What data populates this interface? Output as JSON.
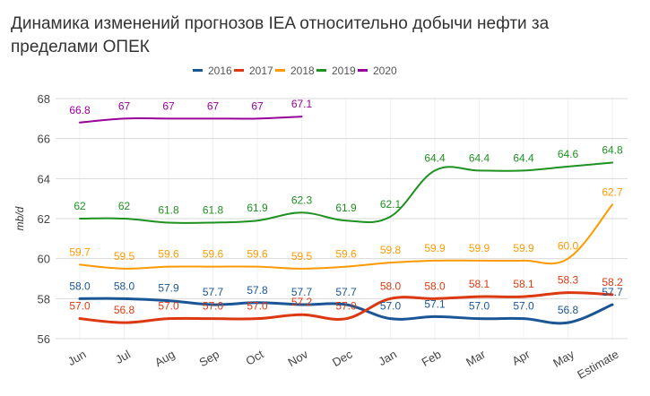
{
  "chart_data": {
    "type": "line",
    "title": "Динамика изменений прогнозов IEA относительно добычи нефти за пределами ОПЕК",
    "xlabel": "",
    "ylabel": "mb/d",
    "ylim": [
      56,
      68
    ],
    "yticks": [
      56,
      58,
      60,
      62,
      64,
      66,
      68
    ],
    "grid": true,
    "legend_position": "top-center",
    "categories": [
      "Jun",
      "Jul",
      "Aug",
      "Sep",
      "Oct",
      "Nov",
      "Dec",
      "Jan",
      "Feb",
      "Mar",
      "Apr",
      "May",
      "Estimate"
    ],
    "series": [
      {
        "name": "2016",
        "color": "#1a5696",
        "values": [
          58.0,
          58.0,
          57.9,
          57.7,
          57.8,
          57.7,
          57.7,
          57.0,
          57.1,
          57.0,
          57.0,
          56.8,
          57.7
        ],
        "labels": [
          "58.0",
          "58.0",
          "57.9",
          "57.7",
          "57.8",
          "57.7",
          "57.7",
          "57.0",
          "57.1",
          "57.0",
          "57.0",
          "56.8",
          "57.7"
        ]
      },
      {
        "name": "2017",
        "color": "#dc3912",
        "values": [
          57.0,
          56.8,
          57.0,
          57.0,
          57.0,
          57.2,
          57.0,
          58.0,
          58.0,
          58.1,
          58.1,
          58.3,
          58.2
        ],
        "labels": [
          "57.0",
          "56.8",
          "57.0",
          "57.0",
          "57.0",
          "57.2",
          "57.0",
          "58.0",
          "58.0",
          "58.1",
          "58.1",
          "58.3",
          "58.2"
        ]
      },
      {
        "name": "2018",
        "color": "#ff9900",
        "values": [
          59.7,
          59.5,
          59.6,
          59.6,
          59.6,
          59.5,
          59.6,
          59.8,
          59.9,
          59.9,
          59.9,
          60.0,
          62.7
        ],
        "labels": [
          "59.7",
          "59.5",
          "59.6",
          "59.6",
          "59.6",
          "59.5",
          "59.6",
          "59.8",
          "59.9",
          "59.9",
          "59.9",
          "60.0",
          "62.7"
        ]
      },
      {
        "name": "2019",
        "color": "#1e9121",
        "values": [
          62,
          62,
          61.8,
          61.8,
          61.9,
          62.3,
          61.9,
          62.1,
          64.4,
          64.4,
          64.4,
          64.6,
          64.8
        ],
        "labels": [
          "62",
          "62",
          "61.8",
          "61.8",
          "61.9",
          "62.3",
          "61.9",
          "62.1",
          "64.4",
          "64.4",
          "64.4",
          "64.6",
          "64.8"
        ]
      },
      {
        "name": "2020",
        "color": "#990099",
        "values": [
          66.8,
          67,
          67,
          67,
          67,
          67.1,
          null,
          null,
          null,
          null,
          null,
          null,
          null
        ],
        "labels": [
          "66.8",
          "67",
          "67",
          "67",
          "67",
          "67.1",
          null,
          null,
          null,
          null,
          null,
          null,
          null
        ]
      }
    ]
  }
}
